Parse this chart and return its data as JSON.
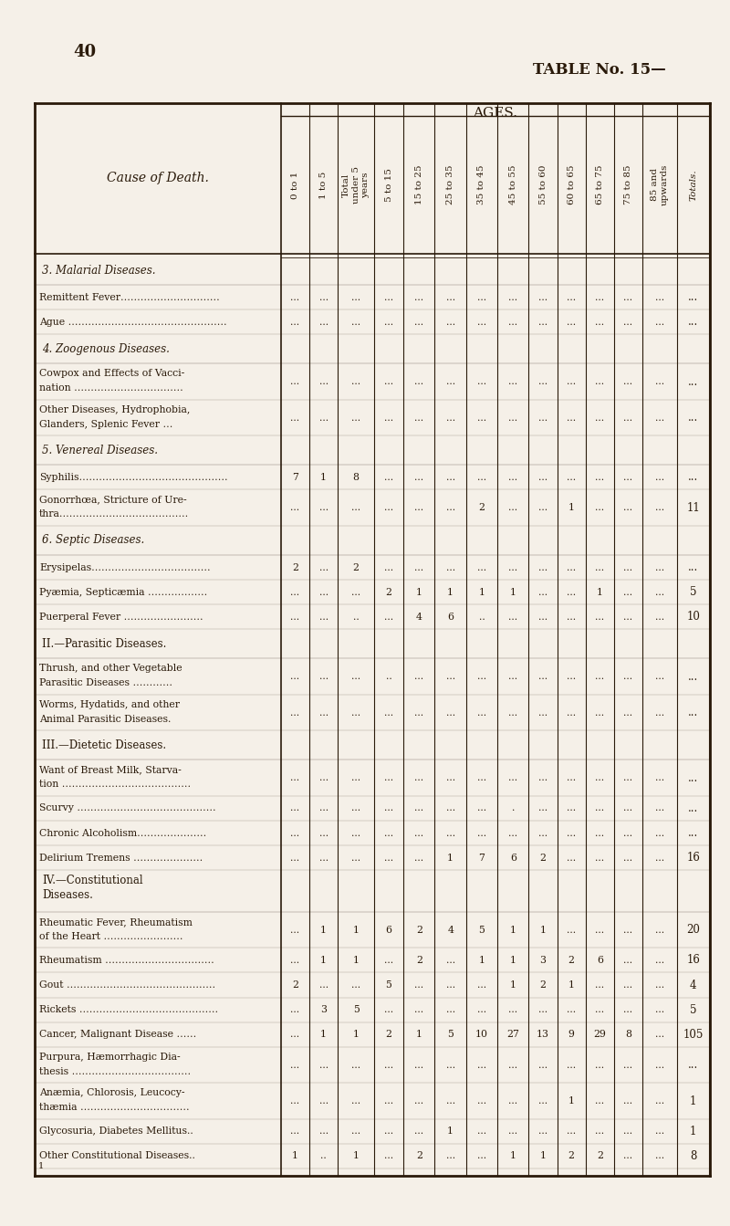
{
  "page_number": "40",
  "table_title": "TABLE No. 15—",
  "background_color": "#f5f0e8",
  "text_color": "#2a1a0a",
  "col_headers": [
    "0 to 1",
    "1 to 5",
    "Total\nunder 5\nyears",
    "5 to 15",
    "15 to 25",
    "25 to 35",
    "35 to 45",
    "45 to 55",
    "55 to 60",
    "60 to 65",
    "65 to 75",
    "75 to 85",
    "85 and\nupwards",
    "Totals."
  ],
  "cause_col_header": "Cause of Death.",
  "sections": [
    {
      "header": "3. Malarial Diseases.",
      "header_italic": true,
      "rows": [
        {
          "label": "Remittent Fever…………………………",
          "data": [
            "...",
            "...",
            "...",
            "...",
            "...",
            "...",
            "...",
            "...",
            "...",
            "...",
            "...",
            "...",
            "...",
            "..."
          ]
        },
        {
          "label": "Ague …………………………………………",
          "data": [
            "...",
            "...",
            "...",
            "...",
            "...",
            "...",
            "...",
            "...",
            "...",
            "...",
            "...",
            "...",
            "...",
            "..."
          ]
        }
      ]
    },
    {
      "header": "4. Zoogenous Diseases.",
      "header_italic": true,
      "rows": [
        {
          "label": "Cowpox and Effects of Vacci-\n   nation ……………………………",
          "data": [
            "...",
            "...",
            "...",
            "...",
            "...",
            "...",
            "...",
            "...",
            "...",
            "...",
            "...",
            "...",
            "...",
            "..."
          ]
        },
        {
          "label": "Other Diseases, Hydrophobia,\n   Glanders, Splenic Fever …",
          "data": [
            "...",
            "...",
            "...",
            "...",
            "...",
            "...",
            "...",
            "...",
            "...",
            "...",
            "...",
            "...",
            "...",
            "..."
          ]
        }
      ]
    },
    {
      "header": "5. Venereal Diseases.",
      "header_italic": true,
      "rows": [
        {
          "label": "Syphilis………………………………………",
          "data": [
            "7",
            "1",
            "8",
            "...",
            "...",
            "...",
            "...",
            "...",
            "...",
            "...",
            "...",
            "...",
            "...",
            "..."
          ]
        },
        {
          "label": "Gonorrhœa, Stricture of Ure-\n   thra…………………………………",
          "data": [
            "...",
            "...",
            "...",
            "...",
            "...",
            "...",
            "2",
            "...",
            "...",
            "1",
            "...",
            "...",
            "...",
            "11"
          ]
        }
      ]
    },
    {
      "header": "6. Septic Diseases.",
      "header_italic": true,
      "rows": [
        {
          "label": "Erysipelas………………………………",
          "data": [
            "2",
            "...",
            "2",
            "...",
            "...",
            "...",
            "...",
            "...",
            "...",
            "...",
            "...",
            "...",
            "...",
            "..."
          ]
        },
        {
          "label": "Pyæmia, Septicæmia ………………",
          "data": [
            "...",
            "...",
            "...",
            "2",
            "1",
            "1",
            "1",
            "1",
            "...",
            "...",
            "1",
            "...",
            "...",
            "5"
          ]
        },
        {
          "label": "Puerperal Fever ……………………",
          "data": [
            "...",
            "...",
            "..",
            "...",
            "4",
            "6",
            "..",
            "...",
            "...",
            "...",
            "...",
            "...",
            "...",
            "10"
          ]
        }
      ]
    },
    {
      "header": "II.—Parasitic Diseases.",
      "header_italic": false,
      "rows": [
        {
          "label": "Thrush, and other Vegetable\n   Parasitic Diseases …………",
          "data": [
            "...",
            "...",
            "...",
            "..",
            "...",
            "...",
            "...",
            "...",
            "...",
            "...",
            "...",
            "...",
            "...",
            "..."
          ]
        },
        {
          "label": "Worms, Hydatids, and other\n   Animal Parasitic Diseases.",
          "data": [
            "...",
            "...",
            "...",
            "...",
            "...",
            "...",
            "...",
            "...",
            "...",
            "...",
            "...",
            "...",
            "...",
            "..."
          ]
        }
      ]
    },
    {
      "header": "III.—Dietetic Diseases.",
      "header_italic": false,
      "rows": [
        {
          "label": "Want of Breast Milk, Starva-\n   tion …………………………………",
          "data": [
            "...",
            "...",
            "...",
            "...",
            "...",
            "...",
            "...",
            "...",
            "...",
            "...",
            "...",
            "...",
            "...",
            "..."
          ]
        },
        {
          "label": "Scurvy ……………………………………",
          "data": [
            "...",
            "...",
            "...",
            "...",
            "...",
            "...",
            "...",
            ".",
            "...",
            "...",
            "...",
            "...",
            "...",
            "..."
          ]
        },
        {
          "label": "Chronic Alcoholism…………………",
          "data": [
            "...",
            "...",
            "...",
            "...",
            "...",
            "...",
            "...",
            "...",
            "...",
            "...",
            "...",
            "...",
            "...",
            "..."
          ]
        },
        {
          "label": "Delirium Tremens …………………",
          "data": [
            "...",
            "...",
            "...",
            "...",
            "...",
            "1",
            "7",
            "6",
            "2",
            "...",
            "...",
            "...",
            "...",
            "16"
          ]
        }
      ]
    },
    {
      "header": "IV.—Constitutional\n      Diseases.",
      "header_italic": false,
      "rows": [
        {
          "label": "Rheumatic Fever, Rheumatism\n   of the Heart ……………………",
          "data": [
            "...",
            "1",
            "1",
            "6",
            "2",
            "4",
            "5",
            "1",
            "1",
            "...",
            "...",
            "...",
            "...",
            "20"
          ]
        },
        {
          "label": "Rheumatism ……………………………",
          "data": [
            "...",
            "1",
            "1",
            "...",
            "2",
            "...",
            "1",
            "1",
            "3",
            "2",
            "6",
            "...",
            "...",
            "16"
          ]
        },
        {
          "label": "Gout ………………………………………",
          "data": [
            "2",
            "...",
            "...",
            "5",
            "...",
            "...",
            "...",
            "1",
            "2",
            "1",
            "...",
            "...",
            "...",
            "4"
          ]
        },
        {
          "label": "Rickets ……………………………………",
          "data": [
            "...",
            "3",
            "5",
            "...",
            "...",
            "...",
            "...",
            "...",
            "...",
            "...",
            "...",
            "...",
            "...",
            "5"
          ]
        },
        {
          "label": "Cancer, Malignant Disease ……",
          "data": [
            "...",
            "1",
            "1",
            "2",
            "1",
            "5",
            "10",
            "27",
            "13",
            "9",
            "29",
            "8",
            "...",
            "105"
          ]
        },
        {
          "label": "Purpura, Hæmorrhagic Dia-\n   thesis ………………………………",
          "data": [
            "...",
            "...",
            "...",
            "...",
            "...",
            "...",
            "...",
            "...",
            "...",
            "...",
            "...",
            "...",
            "...",
            "..."
          ]
        },
        {
          "label": "Anæmia, Chlorosis, Leucocy-\n   thæmia ……………………………",
          "data": [
            "...",
            "...",
            "...",
            "...",
            "...",
            "...",
            "...",
            "...",
            "...",
            "1",
            "...",
            "...",
            "...",
            "1"
          ]
        },
        {
          "label": "Glycosuria, Diabetes Mellitus..",
          "data": [
            "...",
            "...",
            "...",
            "...",
            "...",
            "1",
            "...",
            "...",
            "...",
            "...",
            "...",
            "...",
            "...",
            "1"
          ]
        },
        {
          "label": "Other Constitutional Diseases..",
          "data": [
            "1",
            "..",
            "1",
            "...",
            "2",
            "...",
            "...",
            "1",
            "1",
            "2",
            "2",
            "...",
            "...",
            "8"
          ]
        }
      ]
    }
  ],
  "footer_note": "1"
}
